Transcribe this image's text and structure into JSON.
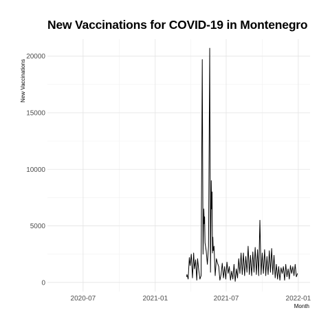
{
  "chart_data": {
    "type": "line",
    "title": "New Vaccinations for COVID-19 in Montenegro",
    "xlabel": "Month",
    "ylabel": "New Vaccinations",
    "x_ticks": [
      "2020-07",
      "2021-01",
      "2021-07",
      "2022-01"
    ],
    "y_ticks": [
      0,
      5000,
      10000,
      15000,
      20000
    ],
    "xlim": [
      "2020-04-01",
      "2022-01-31"
    ],
    "ylim": [
      -800,
      21500
    ],
    "grid": true,
    "line_color": "#000000",
    "series": [
      {
        "x": [
          "2021-03-22",
          "2021-03-23",
          "2021-03-26",
          "2021-03-29",
          "2021-03-31",
          "2021-04-03",
          "2021-04-06",
          "2021-04-09",
          "2021-04-11",
          "2021-04-14",
          "2021-04-17",
          "2021-04-19",
          "2021-04-22",
          "2021-04-25",
          "2021-04-28",
          "2021-05-01",
          "2021-05-03",
          "2021-05-05",
          "2021-05-06",
          "2021-05-07",
          "2021-05-08",
          "2021-05-11",
          "2021-05-14",
          "2021-05-17",
          "2021-05-20",
          "2021-05-22",
          "2021-05-24",
          "2021-05-25",
          "2021-05-26",
          "2021-05-27",
          "2021-05-28",
          "2021-05-29",
          "2021-05-31",
          "2021-06-03",
          "2021-06-06",
          "2021-06-09",
          "2021-06-12",
          "2021-06-15",
          "2021-06-18",
          "2021-06-21",
          "2021-06-24",
          "2021-06-27",
          "2021-06-30",
          "2021-07-03",
          "2021-07-06",
          "2021-07-09",
          "2021-07-12",
          "2021-07-15",
          "2021-07-18",
          "2021-07-21",
          "2021-07-24",
          "2021-07-27",
          "2021-07-30",
          "2021-08-02",
          "2021-08-05",
          "2021-08-08",
          "2021-08-11",
          "2021-08-14",
          "2021-08-17",
          "2021-08-20",
          "2021-08-23",
          "2021-08-26",
          "2021-08-29",
          "2021-09-01",
          "2021-09-04",
          "2021-09-07",
          "2021-09-10",
          "2021-09-13",
          "2021-09-16",
          "2021-09-19",
          "2021-09-22",
          "2021-09-25",
          "2021-09-28",
          "2021-10-01",
          "2021-10-04",
          "2021-10-07",
          "2021-10-10",
          "2021-10-13",
          "2021-10-16",
          "2021-10-19",
          "2021-10-22",
          "2021-10-25",
          "2021-10-28",
          "2021-10-31",
          "2021-11-03",
          "2021-11-06",
          "2021-11-09",
          "2021-11-12",
          "2021-11-15",
          "2021-11-18",
          "2021-11-21",
          "2021-11-24",
          "2021-11-27",
          "2021-11-30",
          "2021-12-03",
          "2021-12-06",
          "2021-12-09",
          "2021-12-12",
          "2021-12-15",
          "2021-12-18",
          "2021-12-21",
          "2021-12-24",
          "2021-12-27",
          "2021-12-30"
        ],
        "values": [
          500,
          700,
          300,
          2200,
          1500,
          2500,
          400,
          2600,
          1200,
          2000,
          200,
          2100,
          1100,
          300,
          600,
          19700,
          2500,
          6500,
          5200,
          5800,
          3500,
          2800,
          1600,
          3200,
          20700,
          900,
          9000,
          6500,
          8000,
          2600,
          4000,
          2800,
          3200,
          600,
          2100,
          1700,
          1400,
          200,
          700,
          1700,
          400,
          1400,
          300,
          1800,
          800,
          1400,
          200,
          1000,
          300,
          1600,
          100,
          1200,
          400,
          2100,
          800,
          2600,
          700,
          2600,
          600,
          2300,
          900,
          3200,
          700,
          2400,
          600,
          2700,
          900,
          3100,
          700,
          2900,
          600,
          5500,
          700,
          2600,
          800,
          2900,
          600,
          2300,
          700,
          2800,
          900,
          3000,
          700,
          2400,
          400,
          1600,
          300,
          1400,
          200,
          1300,
          800,
          1400,
          200,
          1600,
          500,
          1200,
          300,
          1500,
          800,
          1400,
          600,
          1600,
          500,
          800
        ]
      }
    ]
  }
}
